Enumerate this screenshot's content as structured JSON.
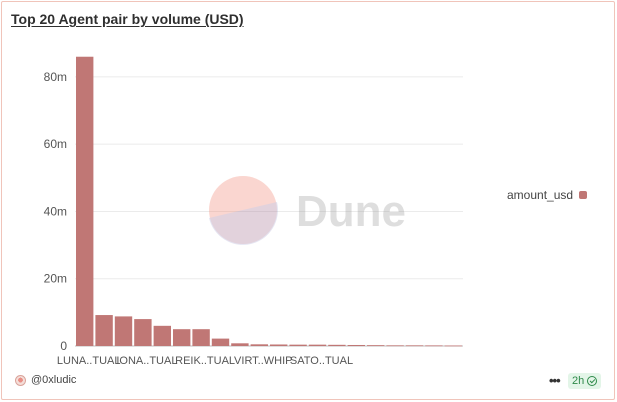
{
  "chart_data": {
    "type": "bar",
    "title": "Top 20 Agent pair by volume (USD)",
    "categories": [
      "LUNA..TUAL",
      "",
      "",
      "IONA..TUAL",
      "",
      "",
      "REIK..TUAL",
      "",
      "",
      "VIRT..WHIP",
      "",
      "",
      "SATO..TUAL",
      "",
      "",
      "",
      "",
      "",
      "",
      ""
    ],
    "series": [
      {
        "name": "amount_usd",
        "color": "#c07775",
        "values": [
          86000000,
          9200000,
          8800000,
          8000000,
          6000000,
          5000000,
          5000000,
          2200000,
          800000,
          500000,
          450000,
          400000,
          400000,
          350000,
          300000,
          250000,
          200000,
          200000,
          180000,
          150000
        ]
      }
    ],
    "y_ticks": [
      0,
      20000000,
      40000000,
      60000000,
      80000000
    ],
    "y_tick_labels": [
      "0",
      "20m",
      "40m",
      "60m",
      "80m"
    ],
    "ylim": [
      0,
      88000000
    ],
    "grid": true,
    "legend_position": "right"
  },
  "watermark": {
    "text": "Dune"
  },
  "footer": {
    "author": "@0xludic",
    "more_label": "•••",
    "age": "2h"
  }
}
